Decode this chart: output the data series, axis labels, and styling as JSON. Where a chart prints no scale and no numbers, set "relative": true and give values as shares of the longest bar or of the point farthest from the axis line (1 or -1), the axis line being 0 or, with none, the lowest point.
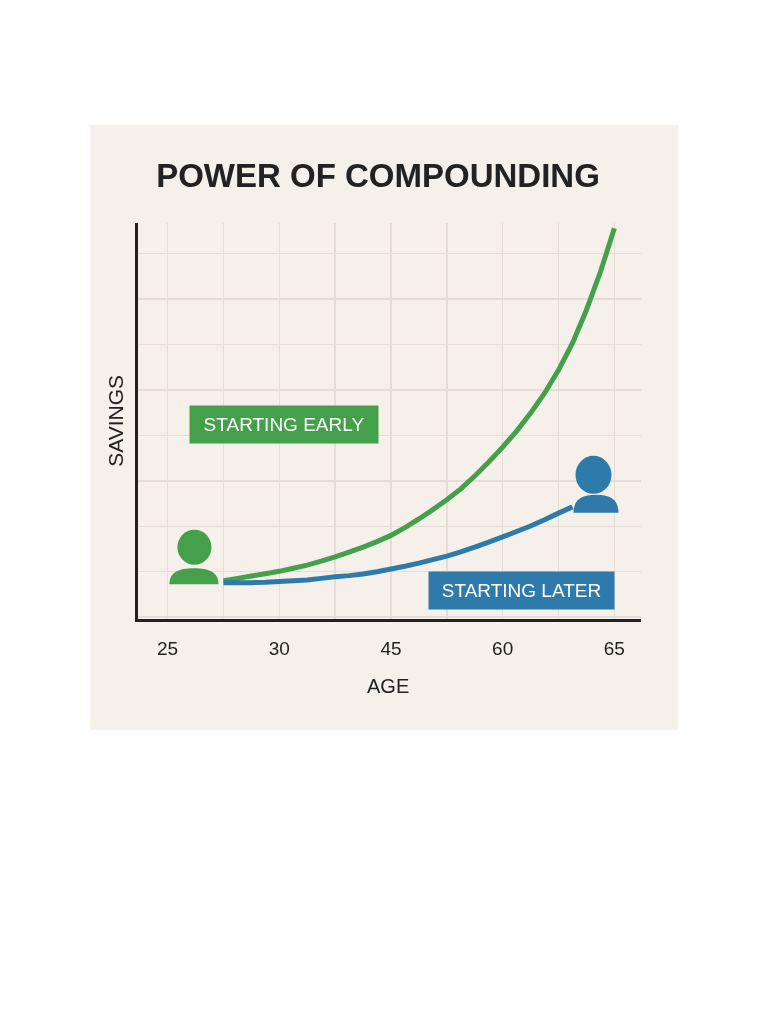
{
  "chart_data": {
    "type": "line",
    "title": "POWER OF COMPOUNDING",
    "xlabel": "AGE",
    "ylabel": "SAVINGS",
    "categories": [
      "25",
      null,
      null,
      null,
      null,
      null,
      null,
      null,
      "30",
      null,
      null,
      null,
      null,
      null,
      null,
      null,
      "45",
      null,
      null,
      null,
      null,
      null,
      null,
      null,
      "60",
      null,
      null,
      null,
      null,
      null,
      null,
      null,
      "65"
    ],
    "relative": true,
    "series": [
      {
        "name": "STARTING EARLY",
        "color": "#44a04b",
        "values": [
          null,
          null,
          null,
          null,
          0.098,
          0.104,
          0.11,
          0.116,
          0.122,
          0.13,
          0.138,
          0.148,
          0.159,
          0.171,
          0.184,
          0.198,
          0.214,
          0.234,
          0.256,
          0.28,
          0.305,
          0.333,
          0.366,
          0.402,
          0.44,
          0.481,
          0.527,
          0.578,
          0.637,
          0.706,
          0.791,
          0.888,
          1
        ]
      },
      {
        "name": "STARTING LATER",
        "color": "#2e7aab",
        "values": [
          null,
          null,
          null,
          null,
          0.093,
          0.093,
          0.093,
          0.094,
          0.096,
          0.098,
          0.1,
          0.104,
          0.108,
          0.111,
          0.115,
          0.121,
          0.128,
          0.135,
          0.143,
          0.152,
          0.161,
          0.172,
          0.184,
          0.197,
          0.21,
          0.224,
          0.238,
          0.254,
          0.271,
          0.287,
          null,
          null,
          null
        ]
      }
    ],
    "grid": true,
    "line_style": "solid"
  }
}
